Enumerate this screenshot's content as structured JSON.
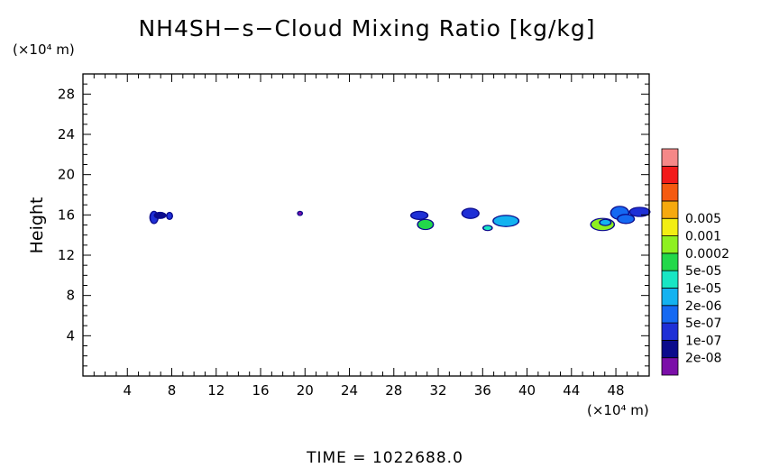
{
  "chart_data": {
    "type": "heatmap",
    "title": "NH4SH−s−Cloud Mixing Ratio [kg/kg]",
    "ylabel": "Height",
    "x_unit": "(×10⁴ m)",
    "y_unit": "(×10⁴ m)",
    "xlim": [
      0,
      51
    ],
    "ylim": [
      0,
      30
    ],
    "x_ticks": [
      4,
      8,
      12,
      16,
      20,
      24,
      28,
      32,
      36,
      40,
      44,
      48
    ],
    "y_ticks": [
      4,
      8,
      12,
      16,
      20,
      24,
      28
    ],
    "legend": {
      "placement": "right",
      "colors": [
        "#7b0fa8",
        "#0b0b8c",
        "#1e2fd6",
        "#1569f2",
        "#13b2f0",
        "#18e6c4",
        "#22d84a",
        "#8ef020",
        "#f2ee12",
        "#f6a90e",
        "#f55a10",
        "#f21a1a",
        "#f58888"
      ],
      "labels": [
        "2e-08",
        "1e-07",
        "5e-07",
        "2e-06",
        "1e-05",
        "5e-05",
        "0.0002",
        "0.001",
        "0.005"
      ]
    },
    "cloud_regions": [
      {
        "x": 6.1,
        "y": 15.2,
        "w": 0.6,
        "h": 1.1,
        "level": 2
      },
      {
        "x": 6.5,
        "y": 15.7,
        "w": 0.9,
        "h": 0.5,
        "level": 1
      },
      {
        "x": 7.6,
        "y": 15.6,
        "w": 0.4,
        "h": 0.6,
        "level": 2
      },
      {
        "x": 19.4,
        "y": 16.0,
        "w": 0.3,
        "h": 0.3,
        "level": 0
      },
      {
        "x": 29.6,
        "y": 15.6,
        "w": 1.4,
        "h": 0.7,
        "level": 2
      },
      {
        "x": 30.2,
        "y": 14.6,
        "w": 1.3,
        "h": 0.9,
        "level": 6
      },
      {
        "x": 34.2,
        "y": 15.7,
        "w": 1.4,
        "h": 0.9,
        "level": 2
      },
      {
        "x": 36.1,
        "y": 14.5,
        "w": 0.7,
        "h": 0.4,
        "level": 5
      },
      {
        "x": 37.0,
        "y": 14.9,
        "w": 2.2,
        "h": 1.0,
        "level": 4
      },
      {
        "x": 45.8,
        "y": 14.5,
        "w": 2.0,
        "h": 1.1,
        "level": 7
      },
      {
        "x": 46.6,
        "y": 15.0,
        "w": 0.9,
        "h": 0.5,
        "level": 4
      },
      {
        "x": 47.6,
        "y": 15.6,
        "w": 1.5,
        "h": 1.2,
        "level": 3
      },
      {
        "x": 48.2,
        "y": 15.2,
        "w": 1.4,
        "h": 0.8,
        "level": 3
      },
      {
        "x": 49.3,
        "y": 15.9,
        "w": 1.7,
        "h": 0.8,
        "level": 2
      }
    ]
  },
  "footer": {
    "time_label": "TIME  =  1022688.0"
  }
}
